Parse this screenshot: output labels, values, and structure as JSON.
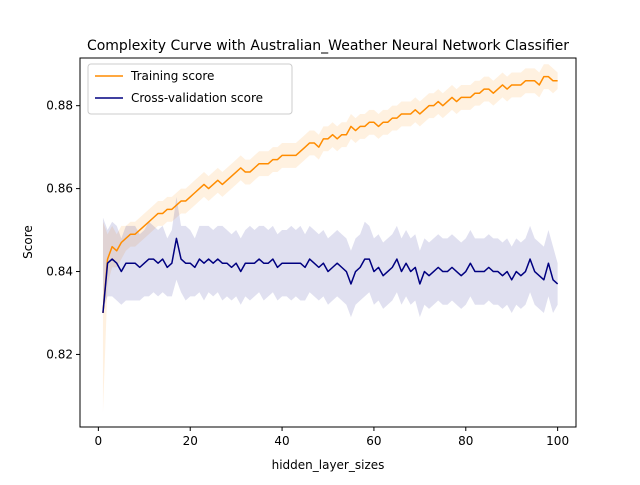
{
  "chart_data": {
    "type": "line",
    "title": "Complexity Curve with Australian_Weather Neural Network Classifier",
    "xlabel": "hidden_layer_sizes",
    "ylabel": "Score",
    "xlim": [
      -4,
      104
    ],
    "ylim": [
      0.8025,
      0.8915
    ],
    "xticks": [
      0,
      20,
      40,
      60,
      80,
      100
    ],
    "xtick_labels": [
      "0",
      "20",
      "40",
      "60",
      "80",
      "100"
    ],
    "yticks": [
      0.82,
      0.84,
      0.86,
      0.88
    ],
    "ytick_labels": [
      "0.82",
      "0.84",
      "0.86",
      "0.88"
    ],
    "grid": false,
    "legend_position": "upper-left",
    "x": [
      1,
      2,
      3,
      4,
      5,
      6,
      7,
      8,
      9,
      10,
      11,
      12,
      13,
      14,
      15,
      16,
      17,
      18,
      19,
      20,
      21,
      22,
      23,
      24,
      25,
      26,
      27,
      28,
      29,
      30,
      31,
      32,
      33,
      34,
      35,
      36,
      37,
      38,
      39,
      40,
      41,
      42,
      43,
      44,
      45,
      46,
      47,
      48,
      49,
      50,
      51,
      52,
      53,
      54,
      55,
      56,
      57,
      58,
      59,
      60,
      61,
      62,
      63,
      64,
      65,
      66,
      67,
      68,
      69,
      70,
      71,
      72,
      73,
      74,
      75,
      76,
      77,
      78,
      79,
      80,
      81,
      82,
      83,
      84,
      85,
      86,
      87,
      88,
      89,
      90,
      91,
      92,
      93,
      94,
      95,
      96,
      97,
      98,
      99,
      100
    ],
    "series": [
      {
        "name": "Training score",
        "color": "#ff8c00",
        "band_color": "#ff8c00",
        "values": [
          0.83,
          0.843,
          0.846,
          0.845,
          0.847,
          0.848,
          0.849,
          0.849,
          0.85,
          0.851,
          0.852,
          0.853,
          0.854,
          0.854,
          0.855,
          0.855,
          0.856,
          0.857,
          0.857,
          0.858,
          0.859,
          0.86,
          0.861,
          0.86,
          0.861,
          0.862,
          0.861,
          0.862,
          0.863,
          0.864,
          0.865,
          0.864,
          0.864,
          0.865,
          0.866,
          0.866,
          0.866,
          0.867,
          0.867,
          0.868,
          0.868,
          0.868,
          0.868,
          0.869,
          0.87,
          0.871,
          0.871,
          0.87,
          0.872,
          0.872,
          0.873,
          0.872,
          0.873,
          0.873,
          0.875,
          0.874,
          0.875,
          0.875,
          0.876,
          0.876,
          0.875,
          0.876,
          0.876,
          0.877,
          0.877,
          0.878,
          0.878,
          0.878,
          0.879,
          0.878,
          0.879,
          0.88,
          0.88,
          0.881,
          0.88,
          0.881,
          0.882,
          0.881,
          0.882,
          0.882,
          0.882,
          0.883,
          0.883,
          0.884,
          0.884,
          0.883,
          0.884,
          0.885,
          0.884,
          0.885,
          0.885,
          0.885,
          0.886,
          0.886,
          0.886,
          0.885,
          0.887,
          0.887,
          0.886,
          0.886
        ],
        "lower": [
          0.806,
          0.837,
          0.841,
          0.841,
          0.843,
          0.845,
          0.846,
          0.846,
          0.847,
          0.848,
          0.849,
          0.85,
          0.851,
          0.851,
          0.852,
          0.852,
          0.853,
          0.854,
          0.854,
          0.855,
          0.856,
          0.857,
          0.858,
          0.857,
          0.858,
          0.859,
          0.858,
          0.859,
          0.86,
          0.861,
          0.862,
          0.861,
          0.861,
          0.862,
          0.863,
          0.863,
          0.863,
          0.864,
          0.864,
          0.865,
          0.865,
          0.865,
          0.865,
          0.866,
          0.867,
          0.868,
          0.868,
          0.867,
          0.869,
          0.869,
          0.87,
          0.869,
          0.87,
          0.87,
          0.872,
          0.871,
          0.872,
          0.872,
          0.873,
          0.873,
          0.872,
          0.873,
          0.873,
          0.874,
          0.874,
          0.875,
          0.875,
          0.875,
          0.876,
          0.875,
          0.876,
          0.877,
          0.877,
          0.878,
          0.877,
          0.878,
          0.879,
          0.878,
          0.879,
          0.879,
          0.879,
          0.88,
          0.88,
          0.881,
          0.881,
          0.88,
          0.881,
          0.882,
          0.881,
          0.882,
          0.882,
          0.882,
          0.883,
          0.883,
          0.883,
          0.882,
          0.884,
          0.884,
          0.883,
          0.884
        ],
        "upper": [
          0.852,
          0.849,
          0.851,
          0.849,
          0.851,
          0.851,
          0.852,
          0.852,
          0.853,
          0.854,
          0.855,
          0.856,
          0.857,
          0.857,
          0.858,
          0.858,
          0.859,
          0.86,
          0.86,
          0.861,
          0.862,
          0.863,
          0.864,
          0.863,
          0.864,
          0.865,
          0.864,
          0.865,
          0.866,
          0.867,
          0.868,
          0.867,
          0.867,
          0.868,
          0.869,
          0.869,
          0.869,
          0.87,
          0.87,
          0.871,
          0.871,
          0.871,
          0.871,
          0.872,
          0.873,
          0.874,
          0.874,
          0.873,
          0.875,
          0.875,
          0.876,
          0.875,
          0.876,
          0.876,
          0.878,
          0.877,
          0.878,
          0.878,
          0.879,
          0.879,
          0.878,
          0.879,
          0.879,
          0.88,
          0.88,
          0.881,
          0.881,
          0.881,
          0.882,
          0.881,
          0.882,
          0.883,
          0.883,
          0.884,
          0.883,
          0.884,
          0.885,
          0.884,
          0.885,
          0.885,
          0.885,
          0.886,
          0.886,
          0.887,
          0.887,
          0.886,
          0.887,
          0.888,
          0.887,
          0.888,
          0.888,
          0.888,
          0.889,
          0.889,
          0.889,
          0.888,
          0.89,
          0.89,
          0.889,
          0.888
        ]
      },
      {
        "name": "Cross-validation score",
        "color": "#000080",
        "band_color": "#000080",
        "values": [
          0.83,
          0.842,
          0.843,
          0.842,
          0.84,
          0.842,
          0.842,
          0.842,
          0.841,
          0.842,
          0.843,
          0.843,
          0.842,
          0.843,
          0.841,
          0.842,
          0.848,
          0.843,
          0.842,
          0.842,
          0.841,
          0.843,
          0.842,
          0.843,
          0.842,
          0.843,
          0.842,
          0.842,
          0.841,
          0.842,
          0.84,
          0.842,
          0.842,
          0.842,
          0.843,
          0.842,
          0.842,
          0.843,
          0.841,
          0.842,
          0.842,
          0.842,
          0.842,
          0.842,
          0.841,
          0.843,
          0.842,
          0.841,
          0.842,
          0.84,
          0.841,
          0.842,
          0.841,
          0.84,
          0.837,
          0.84,
          0.841,
          0.843,
          0.843,
          0.84,
          0.841,
          0.839,
          0.84,
          0.841,
          0.843,
          0.84,
          0.842,
          0.84,
          0.841,
          0.837,
          0.84,
          0.839,
          0.84,
          0.841,
          0.84,
          0.84,
          0.841,
          0.84,
          0.839,
          0.84,
          0.842,
          0.84,
          0.84,
          0.84,
          0.841,
          0.84,
          0.84,
          0.839,
          0.84,
          0.838,
          0.84,
          0.839,
          0.84,
          0.843,
          0.84,
          0.839,
          0.838,
          0.842,
          0.838,
          0.837
        ],
        "lower": [
          0.831,
          0.834,
          0.834,
          0.833,
          0.832,
          0.833,
          0.833,
          0.833,
          0.833,
          0.834,
          0.834,
          0.835,
          0.834,
          0.835,
          0.834,
          0.834,
          0.838,
          0.835,
          0.833,
          0.834,
          0.834,
          0.835,
          0.833,
          0.835,
          0.834,
          0.835,
          0.833,
          0.834,
          0.833,
          0.834,
          0.832,
          0.834,
          0.833,
          0.834,
          0.835,
          0.833,
          0.834,
          0.835,
          0.833,
          0.834,
          0.834,
          0.833,
          0.834,
          0.833,
          0.833,
          0.835,
          0.834,
          0.833,
          0.834,
          0.832,
          0.833,
          0.834,
          0.833,
          0.832,
          0.829,
          0.832,
          0.833,
          0.834,
          0.835,
          0.832,
          0.833,
          0.831,
          0.832,
          0.833,
          0.835,
          0.832,
          0.834,
          0.832,
          0.833,
          0.829,
          0.832,
          0.831,
          0.832,
          0.833,
          0.832,
          0.832,
          0.833,
          0.832,
          0.831,
          0.832,
          0.834,
          0.832,
          0.832,
          0.832,
          0.833,
          0.832,
          0.832,
          0.831,
          0.832,
          0.83,
          0.832,
          0.831,
          0.832,
          0.835,
          0.832,
          0.831,
          0.83,
          0.834,
          0.83,
          0.832
        ],
        "upper": [
          0.853,
          0.85,
          0.852,
          0.851,
          0.848,
          0.851,
          0.851,
          0.851,
          0.849,
          0.85,
          0.852,
          0.851,
          0.85,
          0.851,
          0.848,
          0.85,
          0.858,
          0.851,
          0.851,
          0.85,
          0.848,
          0.851,
          0.851,
          0.851,
          0.85,
          0.851,
          0.851,
          0.85,
          0.849,
          0.85,
          0.848,
          0.85,
          0.851,
          0.85,
          0.851,
          0.851,
          0.85,
          0.851,
          0.849,
          0.85,
          0.85,
          0.851,
          0.85,
          0.851,
          0.849,
          0.851,
          0.85,
          0.849,
          0.85,
          0.848,
          0.849,
          0.85,
          0.849,
          0.848,
          0.845,
          0.848,
          0.849,
          0.852,
          0.851,
          0.848,
          0.849,
          0.847,
          0.848,
          0.849,
          0.851,
          0.848,
          0.85,
          0.848,
          0.849,
          0.845,
          0.848,
          0.847,
          0.848,
          0.849,
          0.848,
          0.848,
          0.849,
          0.848,
          0.847,
          0.848,
          0.85,
          0.848,
          0.848,
          0.848,
          0.849,
          0.848,
          0.848,
          0.847,
          0.848,
          0.846,
          0.848,
          0.847,
          0.848,
          0.851,
          0.848,
          0.847,
          0.846,
          0.85,
          0.846,
          0.842
        ]
      }
    ]
  }
}
